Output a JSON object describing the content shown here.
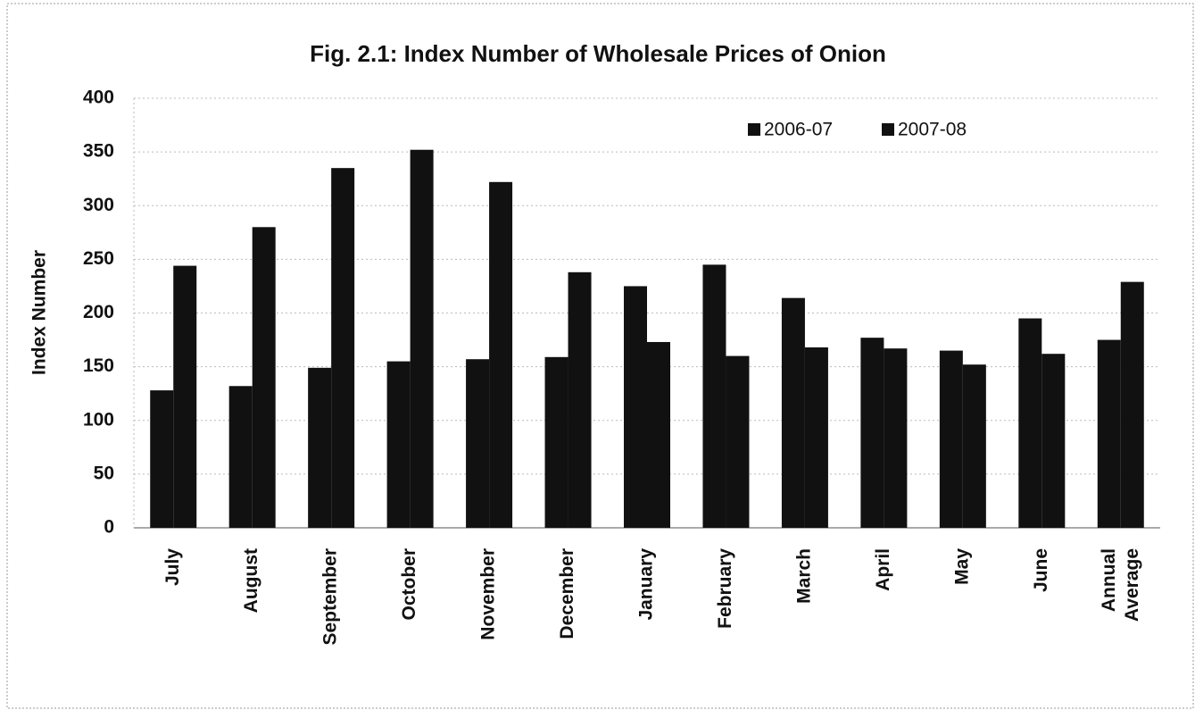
{
  "chart_data": {
    "type": "bar",
    "title": "Fig. 2.1: Index Number of Wholesale Prices of Onion",
    "y_label": "Index Number",
    "categories": [
      "July",
      "August",
      "September",
      "October",
      "November",
      "December",
      "January",
      "February",
      "March",
      "April",
      "May",
      "June",
      "Annual Average"
    ],
    "series": [
      {
        "name": "2006-07",
        "color": "#111111",
        "values": [
          128,
          132,
          149,
          155,
          157,
          159,
          225,
          245,
          214,
          177,
          165,
          195,
          175
        ]
      },
      {
        "name": "2007-08",
        "color": "#111111",
        "values": [
          244,
          280,
          335,
          352,
          322,
          238,
          173,
          160,
          168,
          167,
          152,
          162,
          229
        ]
      }
    ],
    "ylim": [
      0,
      400
    ],
    "yticks": [
      0,
      50,
      100,
      150,
      200,
      250,
      300,
      350,
      400
    ],
    "grid": true,
    "legend": "top-right"
  }
}
